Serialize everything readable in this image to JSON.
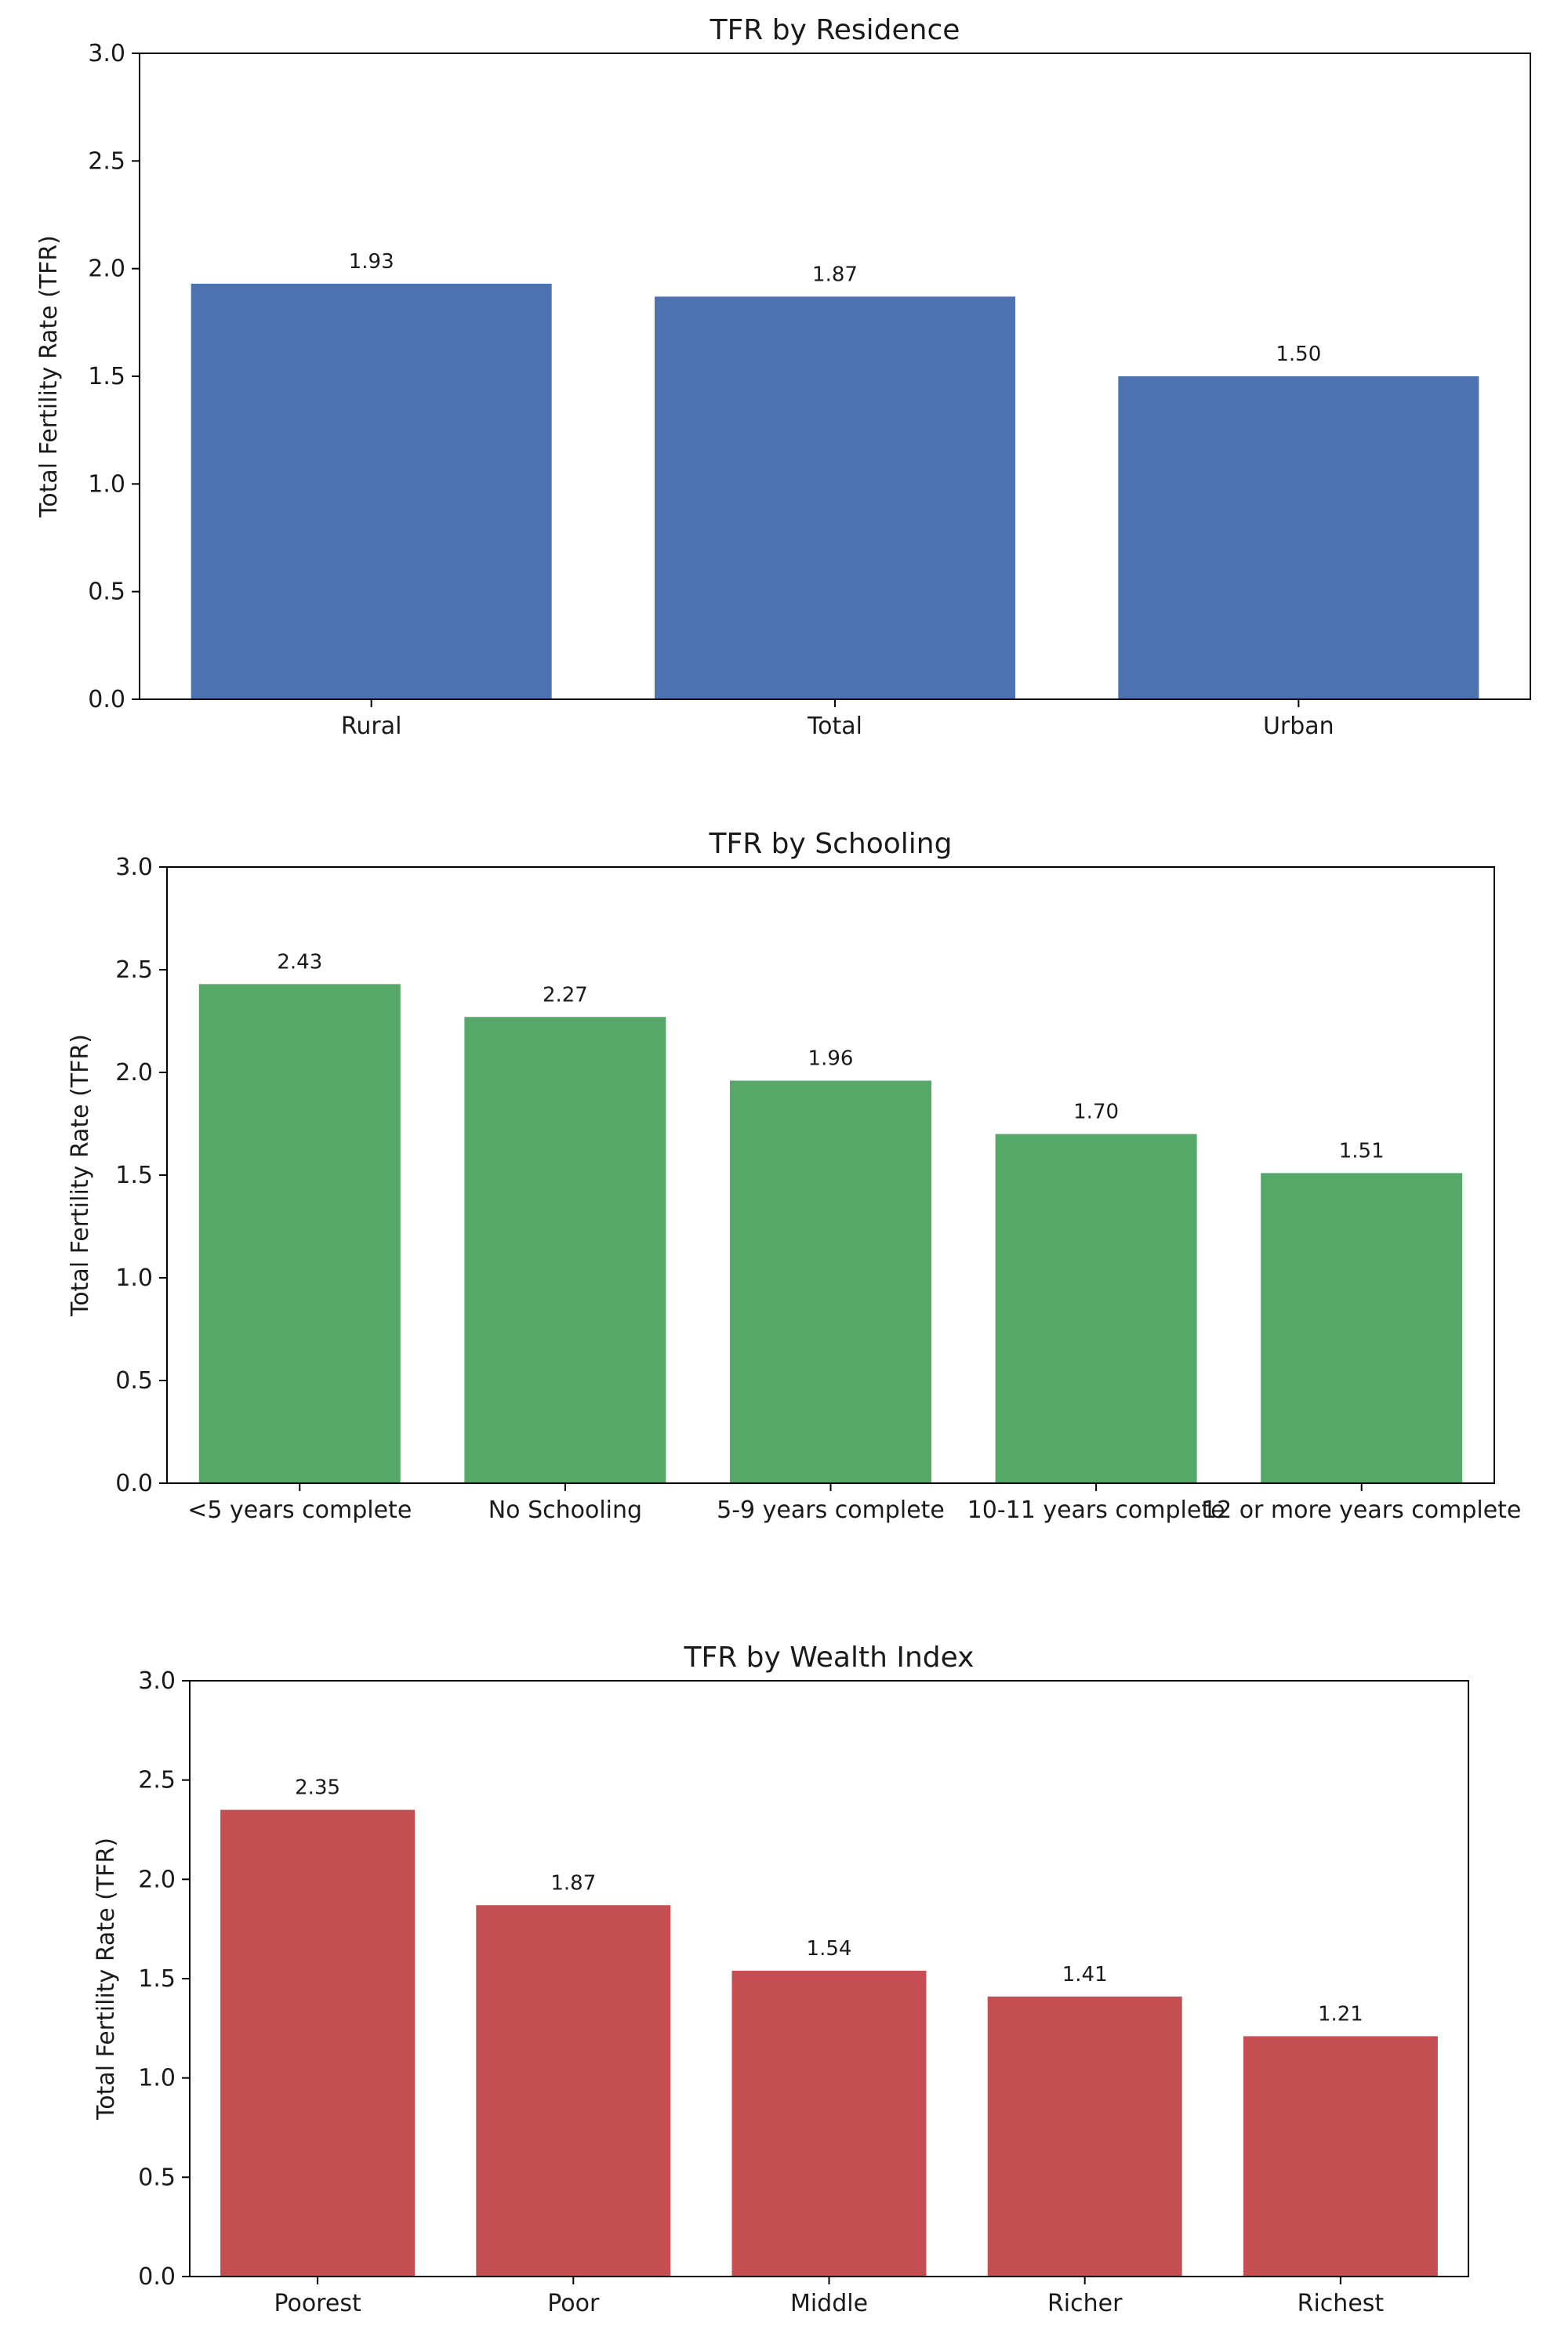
{
  "chart_data": [
    {
      "type": "bar",
      "title": "TFR by Residence",
      "xlabel": "",
      "ylabel": "Total Fertility Rate (TFR)",
      "ylim": [
        0,
        3
      ],
      "yticks": [
        "0.0",
        "0.5",
        "1.0",
        "1.5",
        "2.0",
        "2.5",
        "3.0"
      ],
      "grid": false,
      "categories": [
        "Rural",
        "Total",
        "Urban"
      ],
      "values": [
        1.93,
        1.87,
        1.5
      ],
      "value_labels": [
        "1.93",
        "1.87",
        "1.50"
      ],
      "color": "#4c72b0"
    },
    {
      "type": "bar",
      "title": "TFR by Schooling",
      "xlabel": "",
      "ylabel": "Total Fertility Rate (TFR)",
      "ylim": [
        0,
        3
      ],
      "yticks": [
        "0.0",
        "0.5",
        "1.0",
        "1.5",
        "2.0",
        "2.5",
        "3.0"
      ],
      "grid": false,
      "categories": [
        "<5 years complete",
        "No Schooling",
        "5-9 years complete",
        "10-11 years complete",
        "12 or more years complete"
      ],
      "values": [
        2.43,
        2.27,
        1.96,
        1.7,
        1.51
      ],
      "value_labels": [
        "2.43",
        "2.27",
        "1.96",
        "1.70",
        "1.51"
      ],
      "color": "#55a868"
    },
    {
      "type": "bar",
      "title": "TFR by Wealth Index",
      "xlabel": "",
      "ylabel": "Total Fertility Rate (TFR)",
      "ylim": [
        0,
        3
      ],
      "yticks": [
        "0.0",
        "0.5",
        "1.0",
        "1.5",
        "2.0",
        "2.5",
        "3.0"
      ],
      "grid": false,
      "categories": [
        "Poorest",
        "Poor",
        "Middle",
        "Richer",
        "Richest"
      ],
      "values": [
        2.35,
        1.87,
        1.54,
        1.41,
        1.21
      ],
      "value_labels": [
        "2.35",
        "1.87",
        "1.54",
        "1.41",
        "1.21"
      ],
      "color": "#c44e52"
    }
  ]
}
